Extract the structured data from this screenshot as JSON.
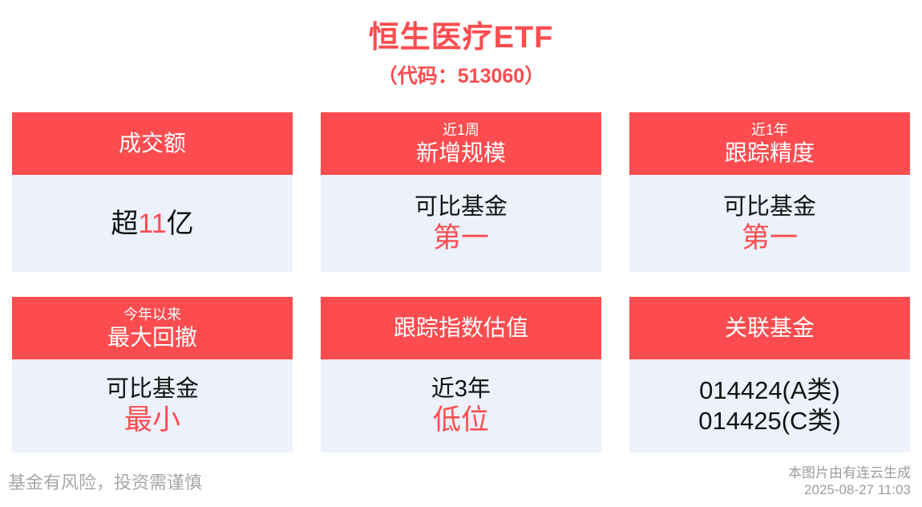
{
  "page": {
    "title": "恒生医疗ETF",
    "subtitle": "（代码：513060）"
  },
  "colors": {
    "accent_red": "#fd4c4f",
    "card_body_bg": "#ecf1fb",
    "text_black": "#121212",
    "footer_gray": "#a7a7a7"
  },
  "cards": [
    {
      "name": "turnover",
      "header_main": "成交额",
      "value_pre": "超",
      "value_red": "11",
      "value_post": "亿"
    },
    {
      "name": "new-scale-1week",
      "header_small": "近1周",
      "header_main": "新增规模",
      "line1": "可比基金",
      "line2": "第一"
    },
    {
      "name": "tracking-precision-1year",
      "header_small": "近1年",
      "header_main": "跟踪精度",
      "line1": "可比基金",
      "line2": "第一"
    },
    {
      "name": "max-drawdown-ytd",
      "header_small": "今年以来",
      "header_main": "最大回撤",
      "line1": "可比基金",
      "line2": "最小"
    },
    {
      "name": "index-valuation",
      "header_main": "跟踪指数估值",
      "line1": "近3年",
      "line2": "低位"
    },
    {
      "name": "related-funds",
      "header_main": "关联基金",
      "line1": "014424(A类)",
      "line2": "014425(C类)"
    }
  ],
  "footer": {
    "disclaimer": "基金有风险，投资需谨慎",
    "credit": "本图片由有连云生成",
    "timestamp": "2025-08-27 11:03"
  }
}
